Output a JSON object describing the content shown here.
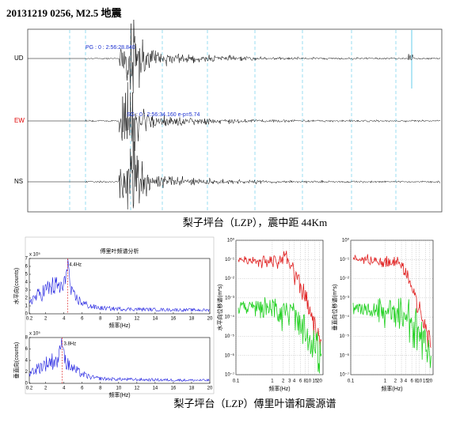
{
  "title": "20131219 0256, M2.5 地震",
  "seismogram": {
    "traces": [
      {
        "label": "UD",
        "color": "#000000"
      },
      {
        "label": "EW",
        "color": "#e00000"
      },
      {
        "label": "NS",
        "color": "#000000"
      }
    ],
    "picks": [
      "PG : 0 : 2:56:28.840",
      "SG : 0 : 2:56:34.160 e-p=5.74"
    ]
  },
  "caption1": "梨子坪台（LZP），震中距 44Km",
  "fourier": {
    "title": "傅里叶频谱分析",
    "xlabel": "频率(Hz)",
    "xlim": [
      0.2,
      20
    ],
    "xticks": [
      0.2,
      2,
      4,
      6,
      8,
      10,
      12,
      14,
      16,
      18,
      20
    ],
    "multiplier": "x 10⁵",
    "panels": [
      {
        "ylabel": "水平向(counts)",
        "ylim": [
          0,
          7
        ],
        "yticks": [
          0,
          1,
          2,
          3,
          4,
          5,
          6,
          7
        ],
        "peak": 4.4,
        "peak_label": "4.4Hz"
      },
      {
        "ylabel": "垂直向(counts)",
        "ylim": [
          0,
          8
        ],
        "yticks": [
          0,
          2,
          4,
          6,
          8
        ],
        "peak": 3.8,
        "peak_label": "3.8Hz"
      }
    ]
  },
  "source_spectra": {
    "log": true,
    "xlabel": "频率(Hz)",
    "xlim": [
      0.1,
      25
    ],
    "xticks": [
      0.1,
      1,
      2,
      3,
      4,
      6,
      8,
      10,
      15,
      20
    ],
    "ylim": [
      1e-07,
      1
    ],
    "yticks": [
      {
        "value": 1,
        "label": "10⁰"
      },
      {
        "value": 0.1,
        "label": "10⁻¹"
      },
      {
        "value": 0.01,
        "label": "10⁻²"
      },
      {
        "value": 0.001,
        "label": "10⁻³"
      },
      {
        "value": 0.0001,
        "label": "10⁻⁴"
      },
      {
        "value": 1e-05,
        "label": "10⁻⁵"
      },
      {
        "value": 1e-06,
        "label": "10⁻⁶"
      },
      {
        "value": 1e-07,
        "label": "10⁻⁷"
      }
    ],
    "panels": [
      {
        "ylabel": "水平向位移谱(m*s)"
      },
      {
        "ylabel": "垂直向位移谱(m*s)"
      }
    ]
  },
  "caption2": "梨子坪台（LZP）傅里叶谱和震源谱"
}
